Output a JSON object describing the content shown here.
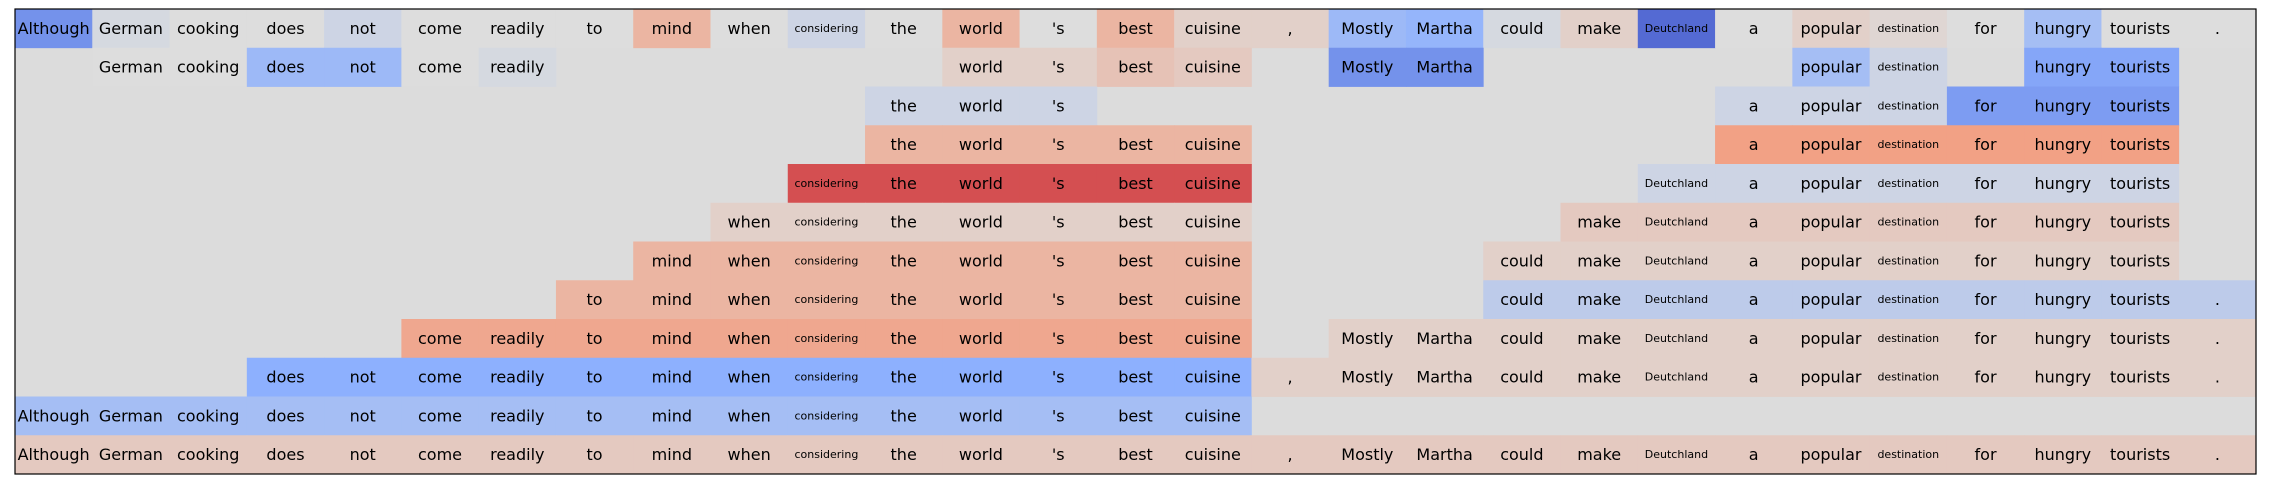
{
  "chart_data": {
    "type": "heatmap",
    "title": "",
    "xlabel": "",
    "ylabel": "",
    "grid": false,
    "legend": "none",
    "colormap": "coolwarm",
    "value_range": [
      -1,
      1
    ],
    "background_color": "#dcdcdc",
    "tokens": [
      "Although",
      "German",
      "cooking",
      "does",
      "not",
      "come",
      "readily",
      "to",
      "mind",
      "when",
      "considering",
      "the",
      "world",
      "'s",
      "best",
      "cuisine",
      ",",
      "Mostly",
      "Martha",
      "could",
      "make",
      "Deutchland",
      "a",
      "popular",
      "destination",
      "for",
      "hungry",
      "tourists",
      "."
    ],
    "rows": [
      {
        "cells": [
          [
            0,
            -0.65
          ],
          [
            1,
            -0.05
          ],
          [
            2,
            0
          ],
          [
            3,
            0
          ],
          [
            4,
            -0.1
          ],
          [
            5,
            0
          ],
          [
            6,
            0
          ],
          [
            7,
            0
          ],
          [
            8,
            0.3
          ],
          [
            9,
            0
          ],
          [
            10,
            -0.1
          ],
          [
            11,
            0
          ],
          [
            12,
            0.3
          ],
          [
            13,
            0
          ],
          [
            14,
            0.3
          ],
          [
            15,
            0.1
          ],
          [
            16,
            0.1
          ],
          [
            17,
            -0.4
          ],
          [
            18,
            -0.45
          ],
          [
            19,
            -0.05
          ],
          [
            20,
            0.1
          ],
          [
            21,
            -0.85
          ],
          [
            22,
            0
          ],
          [
            23,
            0.1
          ],
          [
            24,
            0.05
          ],
          [
            25,
            0
          ],
          [
            26,
            -0.35
          ],
          [
            27,
            0
          ],
          [
            28,
            0
          ]
        ]
      },
      {
        "cells": [
          [
            1,
            0
          ],
          [
            2,
            0
          ],
          [
            3,
            -0.4
          ],
          [
            4,
            -0.4
          ],
          [
            5,
            0
          ],
          [
            6,
            -0.05
          ],
          [
            12,
            0.1
          ],
          [
            13,
            0.1
          ],
          [
            14,
            0.2
          ],
          [
            15,
            0.15
          ],
          [
            17,
            -0.65
          ],
          [
            18,
            -0.65
          ],
          [
            23,
            -0.35
          ],
          [
            24,
            -0.1
          ],
          [
            26,
            -0.55
          ],
          [
            27,
            -0.55
          ]
        ]
      },
      {
        "cells": [
          [
            11,
            -0.1
          ],
          [
            12,
            -0.1
          ],
          [
            13,
            -0.1
          ],
          [
            22,
            -0.1
          ],
          [
            23,
            -0.1
          ],
          [
            24,
            -0.1
          ],
          [
            25,
            -0.6
          ],
          [
            26,
            -0.6
          ],
          [
            27,
            -0.6
          ]
        ]
      },
      {
        "cells": [
          [
            11,
            0.3
          ],
          [
            12,
            0.3
          ],
          [
            13,
            0.3
          ],
          [
            14,
            0.3
          ],
          [
            15,
            0.3
          ],
          [
            22,
            0.45
          ],
          [
            23,
            0.45
          ],
          [
            24,
            0.45
          ],
          [
            25,
            0.45
          ],
          [
            26,
            0.45
          ],
          [
            27,
            0.45
          ]
        ]
      },
      {
        "cells": [
          [
            10,
            0.75
          ],
          [
            11,
            0.75
          ],
          [
            12,
            0.75
          ],
          [
            13,
            0.75
          ],
          [
            14,
            0.75
          ],
          [
            15,
            0.75
          ],
          [
            21,
            -0.1
          ],
          [
            22,
            -0.1
          ],
          [
            23,
            -0.1
          ],
          [
            24,
            -0.1
          ],
          [
            25,
            -0.1
          ],
          [
            26,
            -0.1
          ],
          [
            27,
            -0.1
          ]
        ]
      },
      {
        "cells": [
          [
            9,
            0.1
          ],
          [
            10,
            0.1
          ],
          [
            11,
            0.1
          ],
          [
            12,
            0.1
          ],
          [
            13,
            0.1
          ],
          [
            14,
            0.1
          ],
          [
            15,
            0.1
          ],
          [
            20,
            0.15
          ],
          [
            21,
            0.15
          ],
          [
            22,
            0.15
          ],
          [
            23,
            0.15
          ],
          [
            24,
            0.15
          ],
          [
            25,
            0.15
          ],
          [
            26,
            0.15
          ],
          [
            27,
            0.15
          ]
        ]
      },
      {
        "cells": [
          [
            8,
            0.3
          ],
          [
            9,
            0.3
          ],
          [
            10,
            0.3
          ],
          [
            11,
            0.3
          ],
          [
            12,
            0.3
          ],
          [
            13,
            0.3
          ],
          [
            14,
            0.3
          ],
          [
            15,
            0.3
          ],
          [
            19,
            0.1
          ],
          [
            20,
            0.1
          ],
          [
            21,
            0.1
          ],
          [
            22,
            0.1
          ],
          [
            23,
            0.1
          ],
          [
            24,
            0.1
          ],
          [
            25,
            0.1
          ],
          [
            26,
            0.1
          ],
          [
            27,
            0.1
          ]
        ]
      },
      {
        "cells": [
          [
            7,
            0.3
          ],
          [
            8,
            0.3
          ],
          [
            9,
            0.3
          ],
          [
            10,
            0.3
          ],
          [
            11,
            0.3
          ],
          [
            12,
            0.3
          ],
          [
            13,
            0.3
          ],
          [
            14,
            0.3
          ],
          [
            15,
            0.3
          ],
          [
            19,
            -0.2
          ],
          [
            20,
            -0.2
          ],
          [
            21,
            -0.2
          ],
          [
            22,
            -0.2
          ],
          [
            23,
            -0.2
          ],
          [
            24,
            -0.2
          ],
          [
            25,
            -0.2
          ],
          [
            26,
            -0.2
          ],
          [
            27,
            -0.2
          ],
          [
            28,
            -0.2
          ]
        ]
      },
      {
        "cells": [
          [
            5,
            0.4
          ],
          [
            6,
            0.4
          ],
          [
            7,
            0.4
          ],
          [
            8,
            0.4
          ],
          [
            9,
            0.4
          ],
          [
            10,
            0.4
          ],
          [
            11,
            0.4
          ],
          [
            12,
            0.4
          ],
          [
            13,
            0.4
          ],
          [
            14,
            0.4
          ],
          [
            15,
            0.4
          ],
          [
            17,
            0.1
          ],
          [
            18,
            0.1
          ],
          [
            19,
            0.1
          ],
          [
            20,
            0.1
          ],
          [
            21,
            0.1
          ],
          [
            22,
            0.1
          ],
          [
            23,
            0.1
          ],
          [
            24,
            0.1
          ],
          [
            25,
            0.1
          ],
          [
            26,
            0.1
          ],
          [
            27,
            0.1
          ],
          [
            28,
            0.1
          ]
        ]
      },
      {
        "cells": [
          [
            3,
            -0.5
          ],
          [
            4,
            -0.5
          ],
          [
            5,
            -0.5
          ],
          [
            6,
            -0.5
          ],
          [
            7,
            -0.5
          ],
          [
            8,
            -0.5
          ],
          [
            9,
            -0.5
          ],
          [
            10,
            -0.5
          ],
          [
            11,
            -0.5
          ],
          [
            12,
            -0.5
          ],
          [
            13,
            -0.5
          ],
          [
            14,
            -0.5
          ],
          [
            15,
            -0.5
          ],
          [
            16,
            0.1
          ],
          [
            17,
            0.1
          ],
          [
            18,
            0.1
          ],
          [
            19,
            0.1
          ],
          [
            20,
            0.1
          ],
          [
            21,
            0.1
          ],
          [
            22,
            0.1
          ],
          [
            23,
            0.1
          ],
          [
            24,
            0.1
          ],
          [
            25,
            0.1
          ],
          [
            26,
            0.1
          ],
          [
            27,
            0.1
          ],
          [
            28,
            0.1
          ]
        ]
      },
      {
        "cells": [
          [
            0,
            -0.35
          ],
          [
            1,
            -0.35
          ],
          [
            2,
            -0.35
          ],
          [
            3,
            -0.35
          ],
          [
            4,
            -0.35
          ],
          [
            5,
            -0.35
          ],
          [
            6,
            -0.35
          ],
          [
            7,
            -0.35
          ],
          [
            8,
            -0.35
          ],
          [
            9,
            -0.35
          ],
          [
            10,
            -0.35
          ],
          [
            11,
            -0.35
          ],
          [
            12,
            -0.35
          ],
          [
            13,
            -0.35
          ],
          [
            14,
            -0.35
          ],
          [
            15,
            -0.35
          ]
        ]
      },
      {
        "cells": [
          [
            0,
            0.15
          ],
          [
            1,
            0.15
          ],
          [
            2,
            0.15
          ],
          [
            3,
            0.15
          ],
          [
            4,
            0.15
          ],
          [
            5,
            0.15
          ],
          [
            6,
            0.15
          ],
          [
            7,
            0.15
          ],
          [
            8,
            0.15
          ],
          [
            9,
            0.15
          ],
          [
            10,
            0.15
          ],
          [
            11,
            0.15
          ],
          [
            12,
            0.15
          ],
          [
            13,
            0.15
          ],
          [
            14,
            0.15
          ],
          [
            15,
            0.15
          ],
          [
            16,
            0.15
          ],
          [
            17,
            0.15
          ],
          [
            18,
            0.15
          ],
          [
            19,
            0.15
          ],
          [
            20,
            0.15
          ],
          [
            21,
            0.15
          ],
          [
            22,
            0.15
          ],
          [
            23,
            0.15
          ],
          [
            24,
            0.15
          ],
          [
            25,
            0.15
          ],
          [
            26,
            0.15
          ],
          [
            27,
            0.15
          ],
          [
            28,
            0.15
          ]
        ]
      }
    ]
  }
}
